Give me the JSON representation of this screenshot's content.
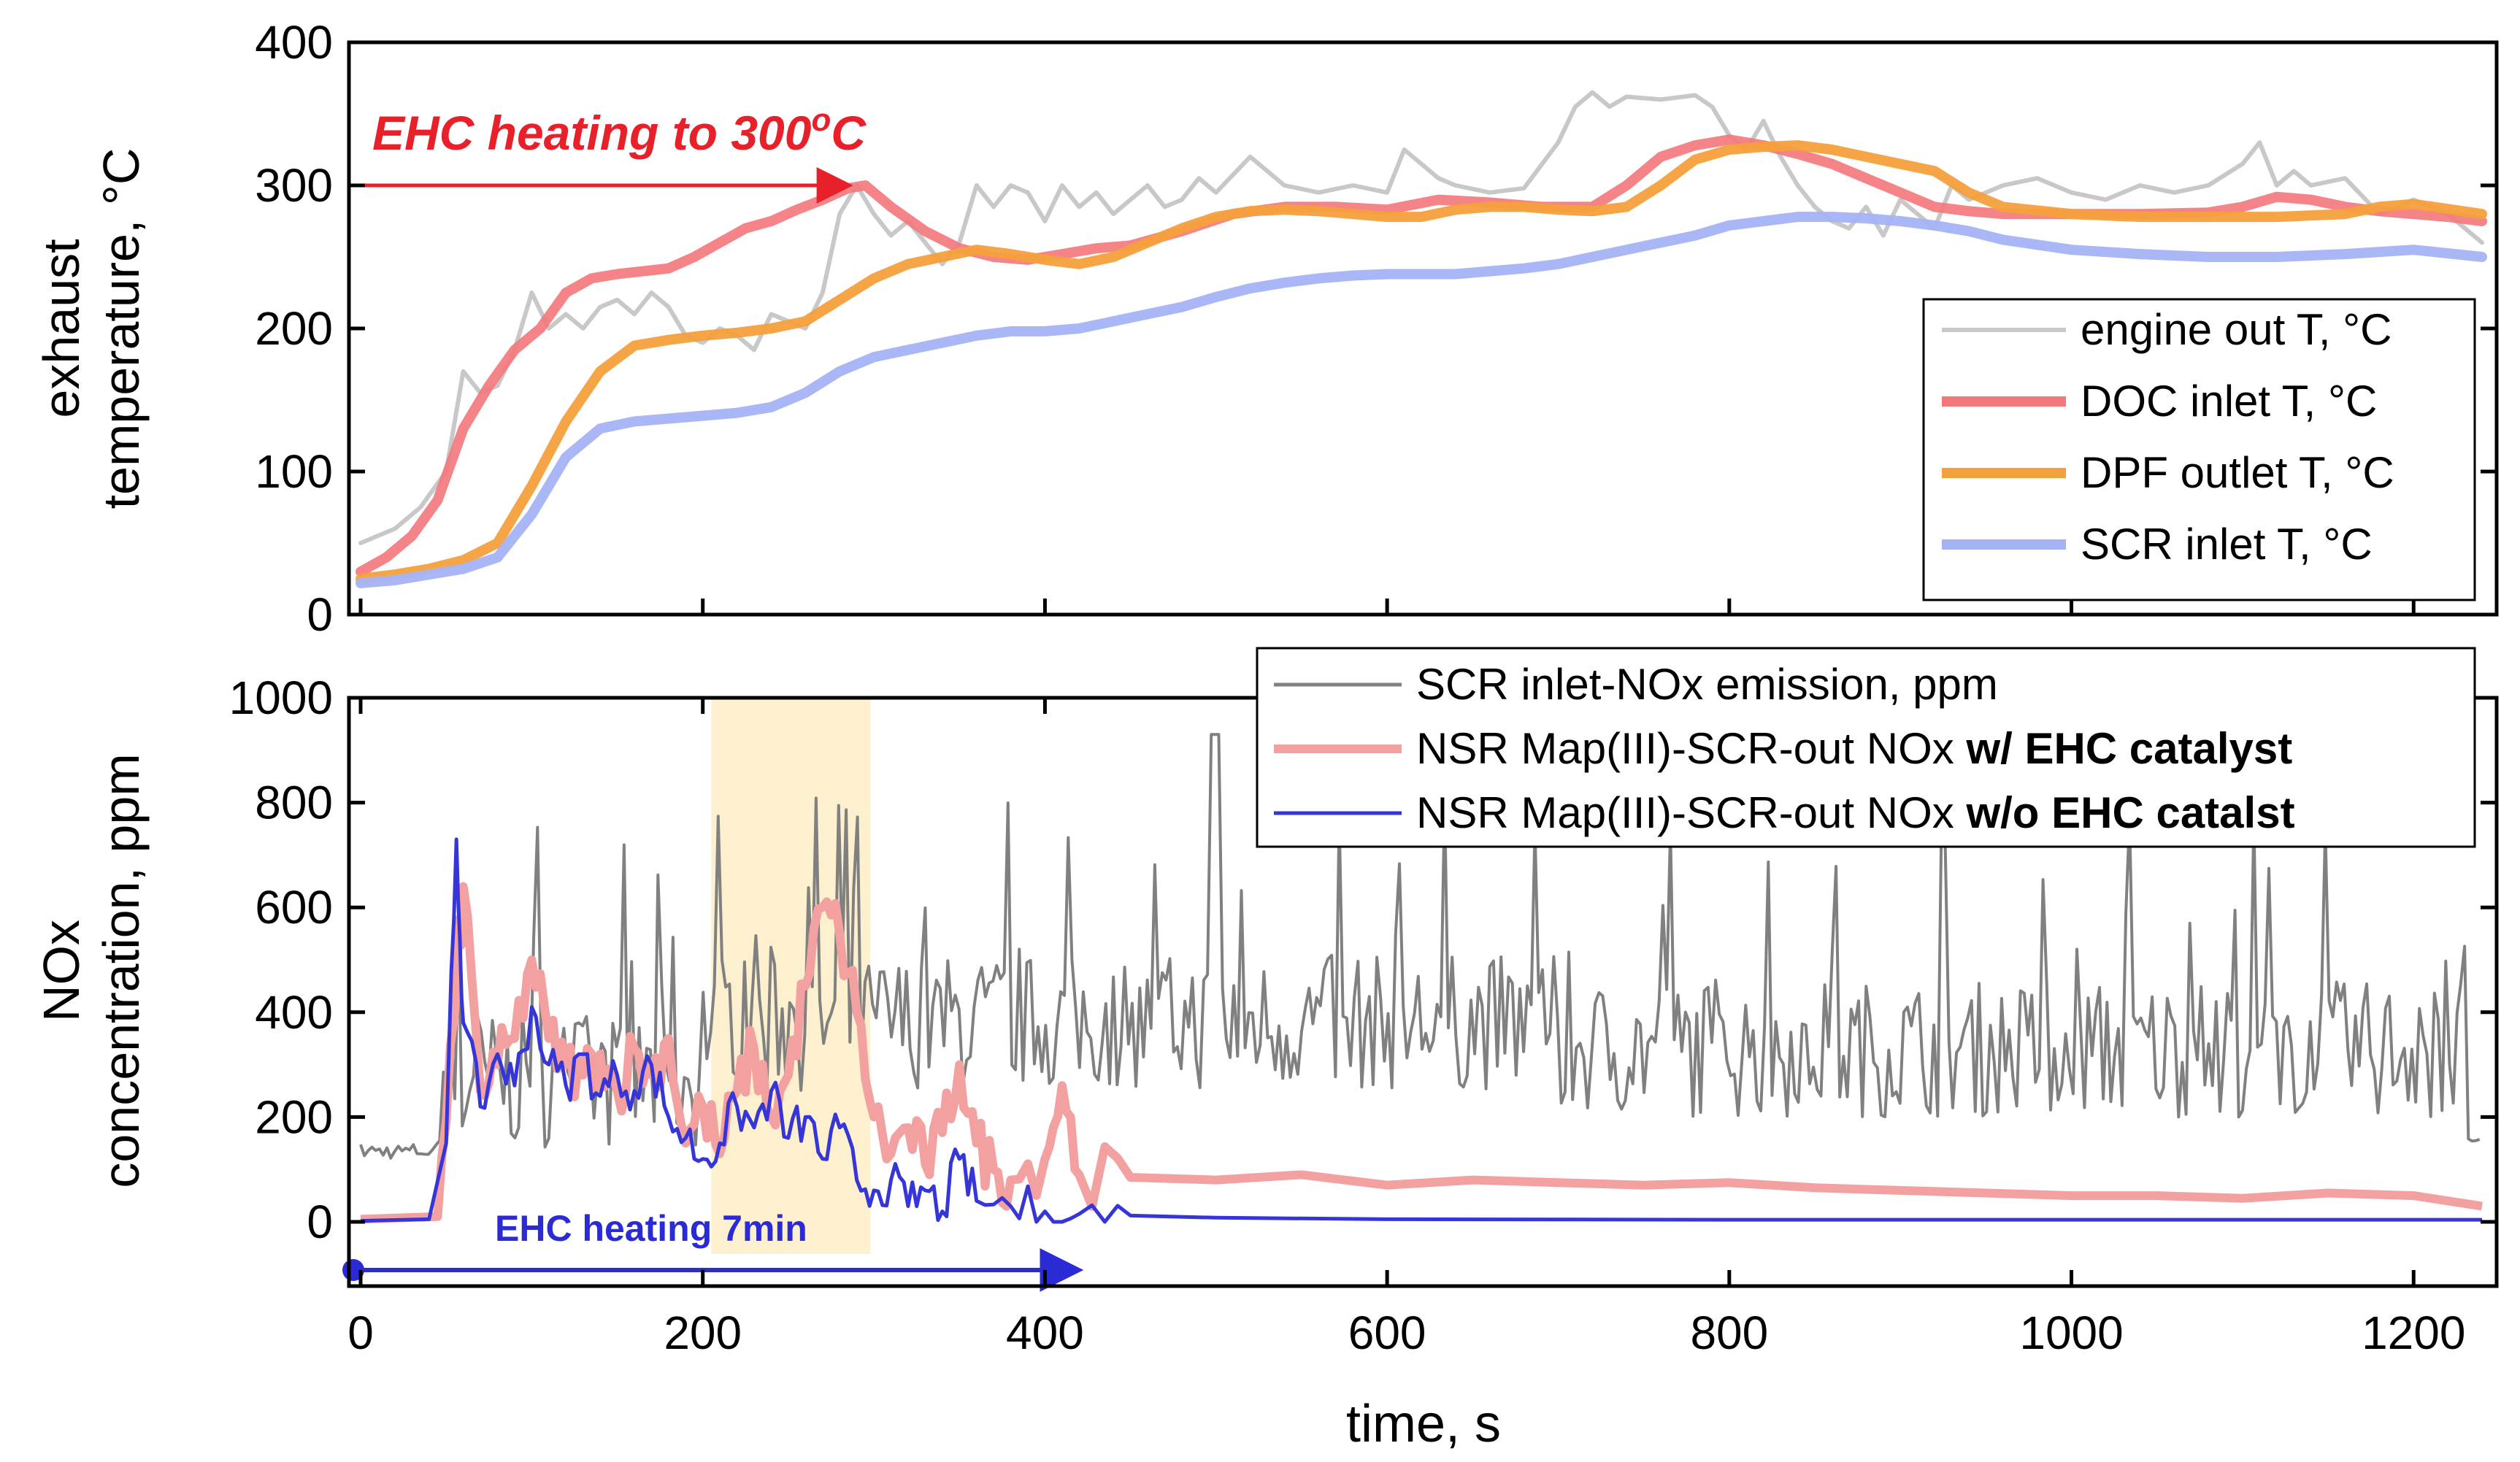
{
  "chart_data": [
    {
      "type": "line",
      "ylabel_line1": "exhaust",
      "ylabel_line2": "temperature, °C",
      "xlim": [
        0,
        1240
      ],
      "ylim": [
        0,
        400
      ],
      "yticks": [
        "0",
        "100",
        "200",
        "300",
        "400"
      ],
      "legend_position": "right",
      "annotation": {
        "text_main": "EHC heating to 300",
        "text_sup": "o",
        "text_tail": "C",
        "arrow": {
          "x_from": 0,
          "x_to": 290,
          "y": 300
        }
      },
      "series": [
        {
          "name": "engine out T, °C",
          "color": "#c8c8c8",
          "x": [
            0,
            20,
            35,
            50,
            60,
            70,
            80,
            90,
            100,
            110,
            120,
            130,
            140,
            150,
            160,
            170,
            180,
            190,
            200,
            210,
            220,
            230,
            240,
            250,
            260,
            270,
            280,
            290,
            300,
            310,
            320,
            330,
            340,
            350,
            360,
            370,
            380,
            390,
            400,
            410,
            420,
            430,
            440,
            450,
            460,
            470,
            480,
            490,
            500,
            520,
            540,
            560,
            580,
            600,
            610,
            620,
            630,
            640,
            660,
            680,
            700,
            710,
            720,
            730,
            740,
            760,
            780,
            790,
            800,
            810,
            820,
            830,
            840,
            850,
            860,
            870,
            880,
            890,
            900,
            910,
            920,
            930,
            940,
            960,
            980,
            1000,
            1020,
            1040,
            1060,
            1080,
            1100,
            1110,
            1120,
            1130,
            1140,
            1160,
            1180,
            1200,
            1220,
            1240
          ],
          "y": [
            50,
            60,
            75,
            100,
            170,
            155,
            160,
            185,
            225,
            200,
            210,
            200,
            215,
            220,
            210,
            225,
            215,
            195,
            190,
            200,
            195,
            185,
            210,
            205,
            200,
            225,
            280,
            300,
            280,
            265,
            275,
            260,
            245,
            260,
            300,
            285,
            300,
            295,
            275,
            300,
            285,
            295,
            280,
            290,
            300,
            285,
            290,
            305,
            295,
            320,
            300,
            295,
            300,
            295,
            325,
            315,
            305,
            300,
            295,
            298,
            330,
            355,
            365,
            355,
            362,
            360,
            363,
            355,
            335,
            325,
            345,
            320,
            300,
            285,
            275,
            270,
            285,
            265,
            290,
            280,
            270,
            300,
            290,
            300,
            305,
            295,
            290,
            300,
            295,
            300,
            315,
            330,
            300,
            310,
            300,
            305,
            280,
            290,
            280,
            260
          ]
        },
        {
          "name": "DOC inlet T, °C",
          "color": "#f4777c",
          "x": [
            0,
            15,
            30,
            45,
            60,
            75,
            90,
            105,
            120,
            135,
            150,
            165,
            180,
            195,
            210,
            225,
            240,
            255,
            270,
            285,
            295,
            310,
            330,
            350,
            370,
            390,
            410,
            430,
            450,
            480,
            510,
            540,
            570,
            600,
            630,
            660,
            690,
            720,
            740,
            760,
            780,
            800,
            820,
            840,
            860,
            880,
            900,
            920,
            940,
            960,
            1000,
            1040,
            1080,
            1100,
            1120,
            1140,
            1160,
            1180,
            1200,
            1220,
            1240
          ],
          "y": [
            30,
            40,
            55,
            80,
            130,
            160,
            185,
            200,
            225,
            235,
            238,
            240,
            242,
            250,
            260,
            270,
            275,
            283,
            290,
            298,
            300,
            285,
            268,
            256,
            250,
            248,
            252,
            256,
            258,
            268,
            280,
            285,
            285,
            283,
            290,
            288,
            285,
            285,
            300,
            320,
            328,
            332,
            328,
            322,
            315,
            305,
            295,
            285,
            282,
            280,
            280,
            280,
            281,
            285,
            292,
            290,
            285,
            282,
            280,
            278,
            275
          ]
        },
        {
          "name": "DPF outlet T, °C",
          "color": "#f5a03c",
          "x": [
            0,
            20,
            40,
            60,
            80,
            100,
            120,
            140,
            160,
            180,
            200,
            220,
            240,
            260,
            280,
            300,
            320,
            340,
            360,
            380,
            400,
            420,
            440,
            460,
            480,
            500,
            520,
            540,
            560,
            580,
            600,
            620,
            640,
            660,
            680,
            700,
            720,
            740,
            760,
            780,
            800,
            820,
            840,
            860,
            880,
            900,
            920,
            940,
            960,
            1000,
            1040,
            1080,
            1120,
            1160,
            1180,
            1200,
            1240
          ],
          "y": [
            25,
            28,
            32,
            38,
            50,
            90,
            135,
            170,
            188,
            192,
            195,
            197,
            200,
            205,
            220,
            235,
            245,
            250,
            255,
            252,
            248,
            245,
            250,
            260,
            270,
            278,
            282,
            283,
            282,
            280,
            278,
            278,
            283,
            285,
            285,
            283,
            282,
            285,
            300,
            318,
            325,
            327,
            328,
            325,
            320,
            315,
            310,
            295,
            285,
            280,
            278,
            278,
            278,
            280,
            285,
            287,
            280
          ]
        },
        {
          "name": "SCR inlet T, °C",
          "color": "#a5b3f5",
          "x": [
            0,
            20,
            40,
            60,
            80,
            100,
            120,
            140,
            160,
            180,
            200,
            220,
            240,
            260,
            280,
            300,
            320,
            340,
            360,
            380,
            400,
            420,
            440,
            460,
            480,
            500,
            520,
            540,
            560,
            580,
            600,
            620,
            640,
            660,
            680,
            700,
            720,
            740,
            760,
            780,
            800,
            820,
            840,
            860,
            880,
            900,
            920,
            940,
            960,
            1000,
            1040,
            1080,
            1120,
            1160,
            1200,
            1240
          ],
          "y": [
            22,
            24,
            28,
            32,
            40,
            70,
            110,
            130,
            135,
            137,
            139,
            141,
            145,
            155,
            170,
            180,
            185,
            190,
            195,
            198,
            198,
            200,
            205,
            210,
            215,
            222,
            228,
            232,
            235,
            237,
            238,
            238,
            238,
            240,
            242,
            245,
            250,
            255,
            260,
            265,
            272,
            275,
            278,
            278,
            277,
            275,
            272,
            268,
            262,
            255,
            252,
            250,
            250,
            252,
            255,
            250
          ]
        }
      ]
    },
    {
      "type": "line",
      "ylabel_line1": "NOx",
      "ylabel_line2": "concentration, ppm",
      "xlabel": "time, s",
      "xlim": [
        0,
        1240
      ],
      "ylim": [
        -100,
        1000
      ],
      "yticks": [
        "0",
        "200",
        "400",
        "600",
        "800",
        "1000"
      ],
      "xticks": [
        "0",
        "200",
        "400",
        "600",
        "800",
        "1000",
        "1200"
      ],
      "legend_position": "top-right",
      "shaded_region": {
        "x_from": 205,
        "x_to": 298,
        "color": "#fdf0cf"
      },
      "annotation": {
        "text": "EHC heating 7min",
        "arrow": {
          "x_from": 0,
          "x_to": 420,
          "y": -100
        }
      },
      "series": [
        {
          "name": "SCR inlet-NOx emission, ppm",
          "name_bold": "",
          "color": "#808080",
          "summary": "fluctuating 150-950 ppm, baseline ~130 before 50 s, spikes to ~930 at 500 s, ~150 at end",
          "generator": "noisy"
        },
        {
          "name": "NSR Map(III)-SCR-out NOx ",
          "name_bold": "w/ EHC catalyst",
          "color": "#f3a0a0",
          "x": [
            0,
            45,
            55,
            60,
            70,
            80,
            90,
            100,
            110,
            120,
            130,
            140,
            150,
            160,
            170,
            180,
            190,
            200,
            210,
            220,
            230,
            240,
            250,
            260,
            270,
            280,
            290,
            300,
            310,
            320,
            330,
            340,
            350,
            360,
            370,
            380,
            400,
            410,
            420,
            450,
            500,
            550,
            600,
            650,
            700,
            750,
            800,
            850,
            900,
            950,
            1000,
            1050,
            1100,
            1150,
            1200,
            1240
          ],
          "y": [
            5,
            10,
            400,
            640,
            250,
            300,
            350,
            500,
            350,
            300,
            280,
            320,
            250,
            330,
            280,
            350,
            150,
            220,
            130,
            250,
            330,
            200,
            280,
            450,
            600,
            550,
            400,
            200,
            130,
            180,
            110,
            170,
            300,
            150,
            100,
            80,
            120,
            260,
            90,
            85,
            80,
            90,
            70,
            80,
            75,
            70,
            75,
            65,
            60,
            55,
            50,
            50,
            45,
            55,
            50,
            30
          ]
        },
        {
          "name": "NSR Map(III)-SCR-out NOx ",
          "name_bold": "w/o EHC catalst",
          "color": "#3535d8",
          "x": [
            0,
            40,
            50,
            56,
            60,
            70,
            80,
            90,
            100,
            110,
            120,
            130,
            140,
            150,
            160,
            170,
            180,
            190,
            200,
            210,
            220,
            230,
            240,
            250,
            260,
            270,
            280,
            290,
            300,
            310,
            320,
            330,
            340,
            350,
            360,
            380,
            400,
            420,
            450,
            500,
            600,
            800,
            1000,
            1240
          ],
          "y": [
            2,
            5,
            150,
            730,
            380,
            220,
            320,
            260,
            410,
            300,
            260,
            320,
            240,
            280,
            250,
            300,
            200,
            160,
            120,
            150,
            220,
            180,
            250,
            160,
            200,
            120,
            180,
            80,
            60,
            80,
            30,
            60,
            20,
            120,
            40,
            30,
            20,
            15,
            12,
            8,
            5,
            4,
            4,
            4
          ]
        }
      ]
    }
  ]
}
